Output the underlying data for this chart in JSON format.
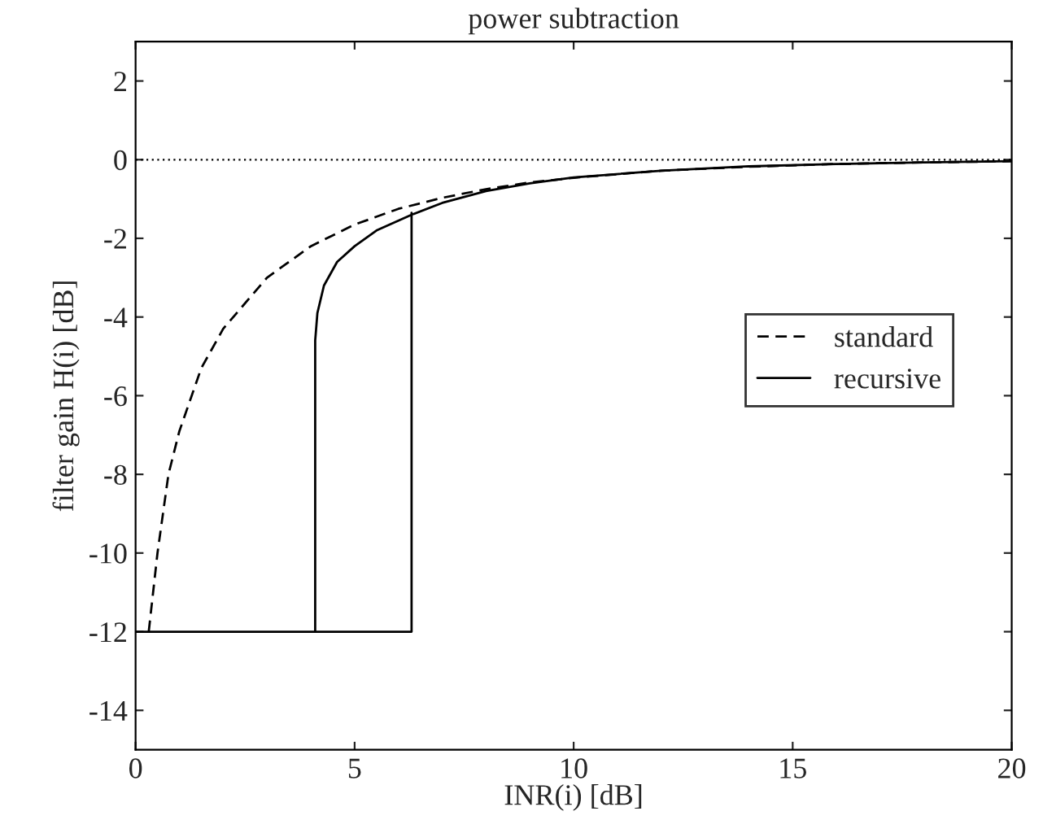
{
  "chart_data": {
    "type": "line",
    "title": "power subtraction",
    "xlabel": "INR(i) [dB]",
    "ylabel": "filter gain H(i) [dB]",
    "xlim": [
      0,
      20
    ],
    "xticks": [
      0,
      5,
      10,
      15,
      20
    ],
    "ylim": [
      -15,
      3
    ],
    "yticks": [
      -14,
      -12,
      -10,
      -8,
      -6,
      -4,
      -2,
      0,
      2
    ],
    "grid": false,
    "legend": "right",
    "marker": "none",
    "ref_lines": [
      {
        "axis": "y",
        "value": 0,
        "line_style": "dotted",
        "color": "#000000"
      }
    ],
    "series": [
      {
        "name": "standard",
        "color": "#000000",
        "line_style": "dashed",
        "x": [
          0.3,
          0.5,
          0.75,
          1,
          1.5,
          2,
          3,
          4,
          5,
          6,
          7,
          8,
          9,
          10,
          12,
          14,
          16,
          18,
          20
        ],
        "values": [
          -12,
          -10,
          -8,
          -6.9,
          -5.3,
          -4.3,
          -3.0,
          -2.2,
          -1.65,
          -1.25,
          -0.97,
          -0.75,
          -0.58,
          -0.46,
          -0.28,
          -0.18,
          -0.11,
          -0.07,
          -0.04
        ]
      },
      {
        "name": "recursive",
        "color": "#000000",
        "line_style": "solid",
        "x": [
          0,
          6.3,
          6.3,
          null,
          4.1,
          4.1,
          4.15,
          4.3,
          4.6,
          5,
          5.5,
          6.3,
          7,
          8,
          9,
          10,
          12,
          14,
          16,
          18,
          20
        ],
        "values": [
          -12,
          -12,
          -1.35,
          null,
          -12,
          -4.6,
          -3.9,
          -3.2,
          -2.6,
          -2.2,
          -1.8,
          -1.4,
          -1.1,
          -0.8,
          -0.6,
          -0.45,
          -0.28,
          -0.17,
          -0.11,
          -0.07,
          -0.04
        ]
      }
    ]
  }
}
